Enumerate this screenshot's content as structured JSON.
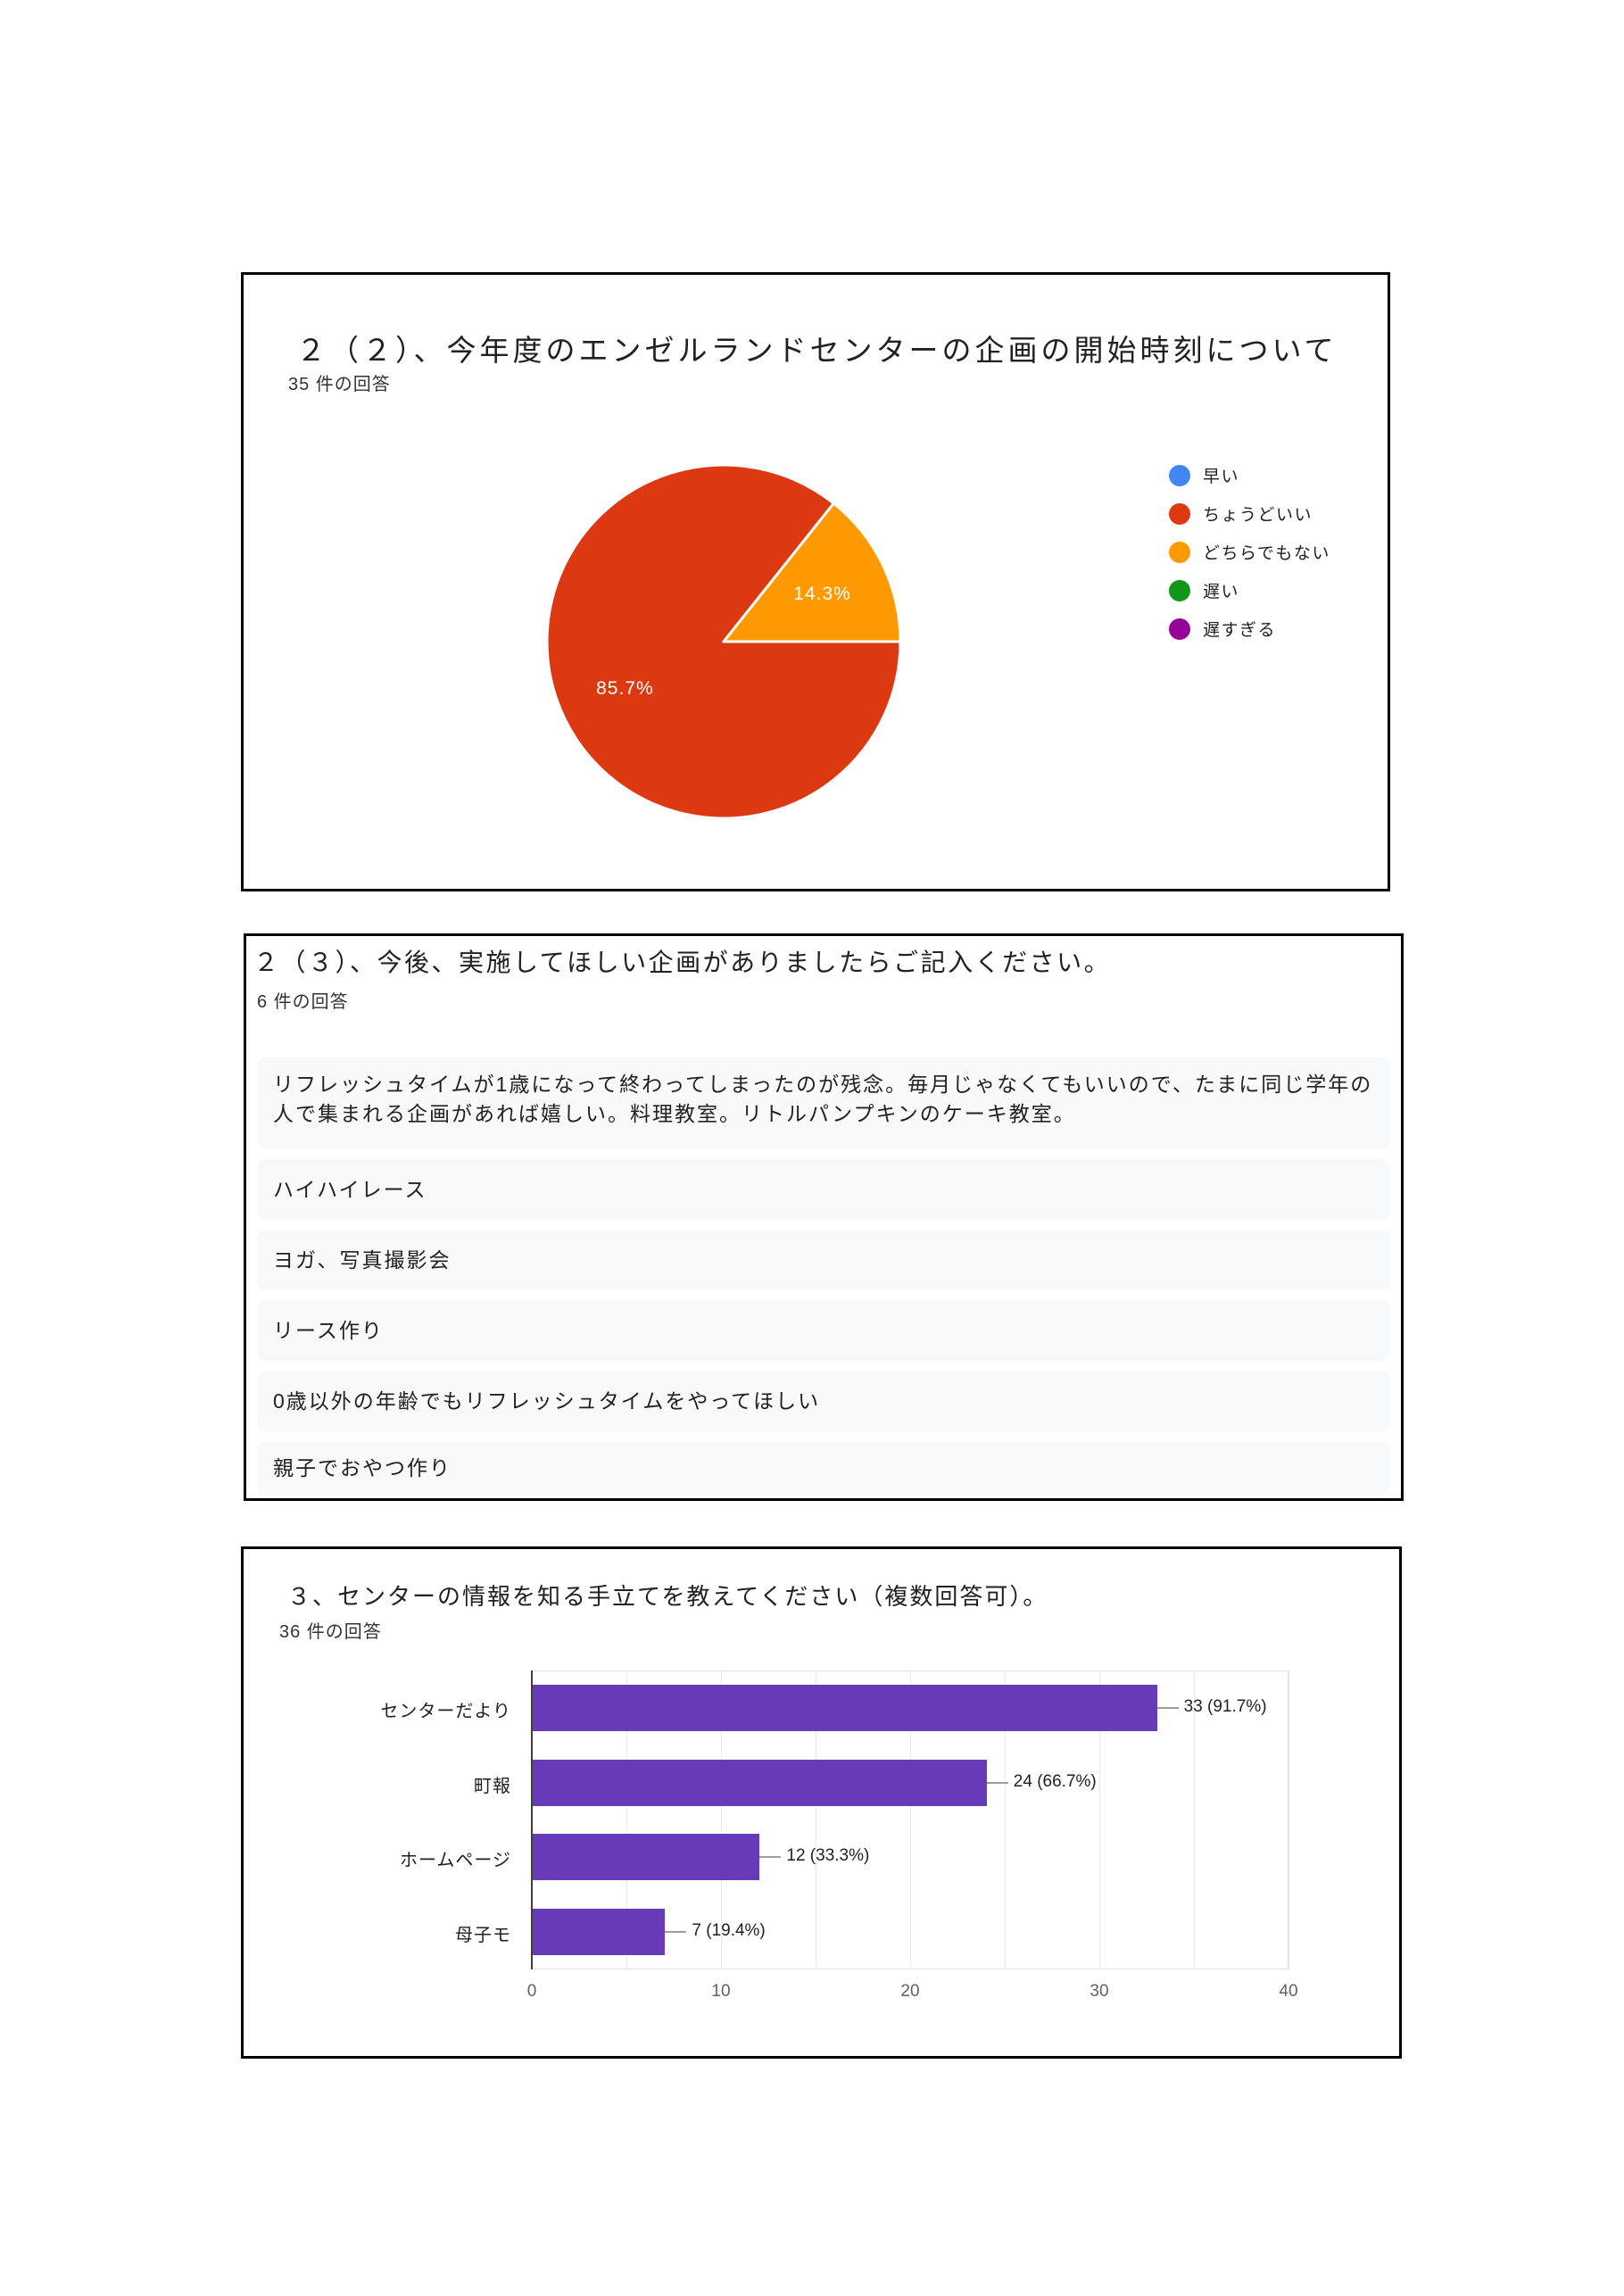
{
  "panels": [
    {
      "title": "２（２）、今年度のエンゼルランドセンターの企画の開始時刻について",
      "response_count": "35 件の回答"
    },
    {
      "title": "２（３）、今後、実施してほしい企画がありましたらご記入ください。",
      "response_count": "6 件の回答",
      "responses": [
        "リフレッシュタイムが1歳になって終わってしまったのが残念。毎月じゃなくてもいいので、たまに同じ学年の人で集まれる企画があれば嬉しい。料理教室。リトルパンプキンのケーキ教室。",
        "ハイハイレース",
        "ヨガ、写真撮影会",
        "リース作り",
        "0歳以外の年齢でもリフレッシュタイムをやってほしい",
        "親子でおやつ作り"
      ]
    },
    {
      "title": "３、センターの情報を知る手立てを教えてください（複数回答可）。",
      "response_count": "36 件の回答"
    }
  ],
  "chart_data": [
    {
      "type": "pie",
      "title": "２（２）、今年度のエンゼルランドセンターの企画の開始時刻について",
      "subtitle": "35 件の回答",
      "start_angle_deg": 90,
      "legend_position": "right",
      "series": [
        {
          "label": "早い",
          "value": 0,
          "color": "#4285F4"
        },
        {
          "label": "ちょうどいい",
          "value": 85.7,
          "color": "#DC3912"
        },
        {
          "label": "どちらでもない",
          "value": 14.3,
          "color": "#FF9900"
        },
        {
          "label": "遅い",
          "value": 0,
          "color": "#109618"
        },
        {
          "label": "遅すぎる",
          "value": 0,
          "color": "#990099"
        }
      ],
      "slice_labels": [
        "85.7%",
        "14.3%"
      ]
    },
    {
      "type": "bar",
      "orientation": "horizontal",
      "title": "３、センターの情報を知る手立てを教えてください（複数回答可）。",
      "subtitle": "36 件の回答",
      "categories": [
        "センターだより",
        "町報",
        "ホームページ",
        "母子モ"
      ],
      "values": [
        33,
        24,
        12,
        7
      ],
      "value_labels": [
        "33 (91.7%)",
        "24 (66.7%)",
        "12 (33.3%)",
        "7 (19.4%)"
      ],
      "xlim": [
        0,
        40
      ],
      "ticks": [
        0,
        10,
        20,
        30,
        40
      ],
      "grid_step": 5,
      "grid": true,
      "bar_color": "#673AB7",
      "legend_position": "none"
    }
  ]
}
